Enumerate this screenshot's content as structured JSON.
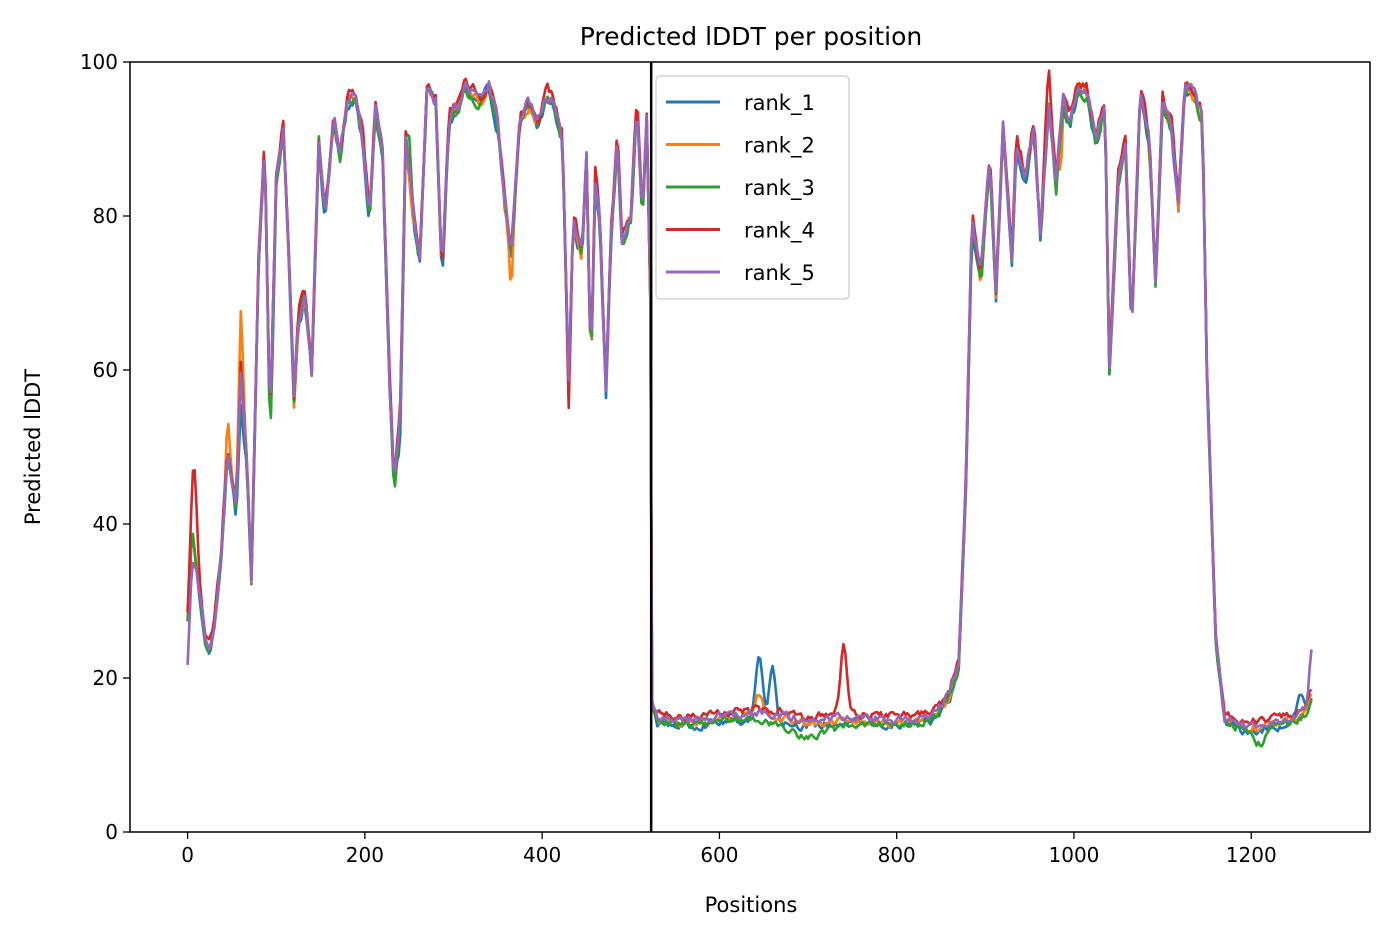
{
  "chart_data": {
    "type": "line",
    "title": "Predicted lDDT per position",
    "xlabel": "Positions",
    "ylabel": "Predicted lDDT",
    "xlim": [
      -65,
      1334
    ],
    "ylim": [
      0,
      100
    ],
    "xticks": [
      0,
      200,
      400,
      600,
      800,
      1000,
      1200
    ],
    "yticks": [
      0,
      20,
      40,
      60,
      80,
      100
    ],
    "vline_x": 523,
    "grid": false,
    "legend_position": "upper-center",
    "series": [
      {
        "name": "rank_1",
        "color": "#1f77b4",
        "offset": -0.8,
        "noise": 0.9,
        "bumps": [
          [
            645,
            8,
            6
          ],
          [
            660,
            7,
            5
          ],
          [
            1255,
            3,
            6
          ],
          [
            60,
            -4,
            4
          ],
          [
            240,
            -3,
            4
          ]
        ]
      },
      {
        "name": "rank_2",
        "color": "#ff7f0e",
        "offset": -0.4,
        "noise": 0.9,
        "bumps": [
          [
            60,
            8,
            4
          ],
          [
            45,
            4,
            3
          ],
          [
            645,
            3,
            6
          ],
          [
            365,
            -4,
            3
          ],
          [
            985,
            -5,
            2
          ]
        ]
      },
      {
        "name": "rank_3",
        "color": "#2ca02c",
        "offset": -0.6,
        "noise": 0.9,
        "bumps": [
          [
            95,
            -3,
            3
          ],
          [
            250,
            5,
            4
          ],
          [
            700,
            -1.5,
            40
          ],
          [
            1210,
            -2,
            10
          ]
        ]
      },
      {
        "name": "rank_4",
        "color": "#d62728",
        "offset": 0.5,
        "noise": 0.9,
        "bumps": [
          [
            8,
            9,
            4
          ],
          [
            740,
            9,
            5
          ],
          [
            430,
            -4,
            3
          ],
          [
            970,
            5,
            4
          ]
        ]
      },
      {
        "name": "rank_5",
        "color": "#9467bd",
        "offset": 0.0,
        "noise": 0.9,
        "bumps": [
          [
            0,
            -6,
            8
          ],
          [
            1268,
            6,
            3
          ]
        ]
      }
    ],
    "base_profile": [
      [
        0,
        28
      ],
      [
        5,
        40
      ],
      [
        10,
        35
      ],
      [
        15,
        30
      ],
      [
        20,
        25
      ],
      [
        25,
        24
      ],
      [
        30,
        27
      ],
      [
        38,
        36
      ],
      [
        45,
        50
      ],
      [
        55,
        42
      ],
      [
        60,
        60
      ],
      [
        67,
        48
      ],
      [
        72,
        33
      ],
      [
        80,
        74
      ],
      [
        87,
        90
      ],
      [
        93,
        52
      ],
      [
        100,
        85
      ],
      [
        108,
        92
      ],
      [
        115,
        73
      ],
      [
        120,
        56
      ],
      [
        125,
        67
      ],
      [
        132,
        70
      ],
      [
        140,
        60
      ],
      [
        148,
        90
      ],
      [
        155,
        80
      ],
      [
        165,
        93
      ],
      [
        172,
        88
      ],
      [
        180,
        95
      ],
      [
        190,
        96
      ],
      [
        198,
        90
      ],
      [
        205,
        80
      ],
      [
        212,
        94
      ],
      [
        220,
        88
      ],
      [
        228,
        58
      ],
      [
        233,
        45
      ],
      [
        240,
        55
      ],
      [
        246,
        90
      ],
      [
        255,
        80
      ],
      [
        262,
        75
      ],
      [
        270,
        97
      ],
      [
        280,
        95
      ],
      [
        287,
        72
      ],
      [
        295,
        93
      ],
      [
        305,
        94
      ],
      [
        312,
        97
      ],
      [
        320,
        96
      ],
      [
        330,
        95
      ],
      [
        340,
        97
      ],
      [
        350,
        92
      ],
      [
        360,
        80
      ],
      [
        365,
        75
      ],
      [
        375,
        93
      ],
      [
        385,
        95
      ],
      [
        395,
        92
      ],
      [
        405,
        96
      ],
      [
        415,
        94
      ],
      [
        423,
        90
      ],
      [
        430,
        58
      ],
      [
        435,
        80
      ],
      [
        445,
        75
      ],
      [
        450,
        88
      ],
      [
        455,
        60
      ],
      [
        460,
        85
      ],
      [
        465,
        80
      ],
      [
        472,
        58
      ],
      [
        478,
        78
      ],
      [
        485,
        90
      ],
      [
        490,
        77
      ],
      [
        500,
        80
      ],
      [
        507,
        95
      ],
      [
        513,
        80
      ],
      [
        518,
        93
      ],
      [
        522,
        70
      ],
      [
        524,
        17
      ],
      [
        530,
        15
      ],
      [
        560,
        14.5
      ],
      [
        600,
        15
      ],
      [
        650,
        15.5
      ],
      [
        700,
        14.5
      ],
      [
        750,
        15
      ],
      [
        800,
        14.5
      ],
      [
        840,
        15
      ],
      [
        860,
        18
      ],
      [
        870,
        22
      ],
      [
        878,
        45
      ],
      [
        885,
        80
      ],
      [
        895,
        72
      ],
      [
        905,
        88
      ],
      [
        912,
        70
      ],
      [
        920,
        92
      ],
      [
        930,
        75
      ],
      [
        935,
        90
      ],
      [
        945,
        85
      ],
      [
        955,
        92
      ],
      [
        962,
        78
      ],
      [
        972,
        95
      ],
      [
        980,
        84
      ],
      [
        988,
        95
      ],
      [
        995,
        92
      ],
      [
        1005,
        97
      ],
      [
        1015,
        96
      ],
      [
        1025,
        90
      ],
      [
        1035,
        95
      ],
      [
        1040,
        60
      ],
      [
        1050,
        85
      ],
      [
        1058,
        90
      ],
      [
        1065,
        65
      ],
      [
        1075,
        97
      ],
      [
        1085,
        90
      ],
      [
        1092,
        72
      ],
      [
        1100,
        95
      ],
      [
        1110,
        92
      ],
      [
        1118,
        82
      ],
      [
        1125,
        97
      ],
      [
        1135,
        96
      ],
      [
        1145,
        93
      ],
      [
        1150,
        60
      ],
      [
        1160,
        25
      ],
      [
        1170,
        15
      ],
      [
        1190,
        14
      ],
      [
        1210,
        14
      ],
      [
        1230,
        14.5
      ],
      [
        1250,
        15
      ],
      [
        1262,
        16
      ],
      [
        1268,
        18
      ]
    ]
  }
}
